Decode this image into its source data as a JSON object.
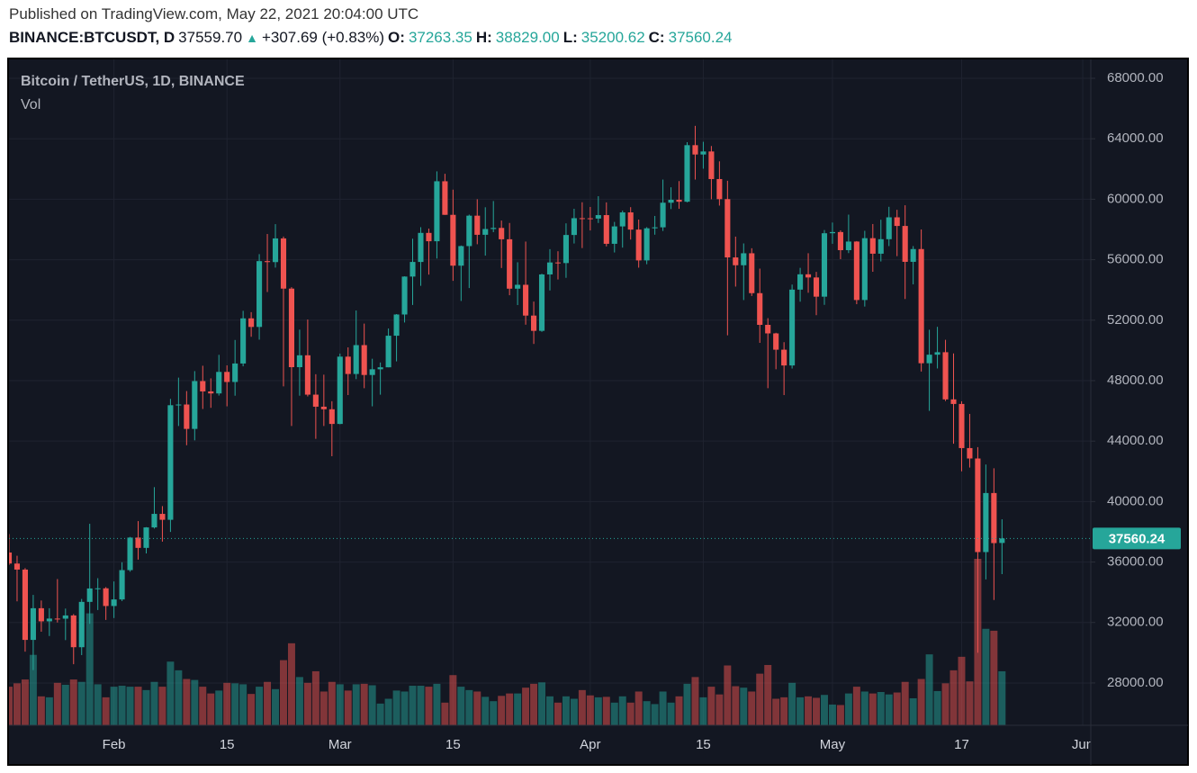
{
  "header": {
    "published": "Published on TradingView.com, May 22, 2021 20:04:00 UTC",
    "symbol": "BINANCE:BTCUSDT, D",
    "last": "37559.70",
    "change": "+307.69 (+0.83%)",
    "o_label": "O:",
    "o": "37263.35",
    "h_label": "H:",
    "h": "38829.00",
    "l_label": "L:",
    "l": "35200.62",
    "c_label": "C:",
    "c": "37560.24"
  },
  "chart_data": {
    "type": "candlestick",
    "title": "Bitcoin / TetherUS, 1D, BINANCE",
    "volume_label": "Vol",
    "x": [
      "2021-01-19",
      "2021-01-20",
      "2021-01-21",
      "2021-01-22",
      "2021-01-23",
      "2021-01-24",
      "2021-01-25",
      "2021-01-26",
      "2021-01-27",
      "2021-01-28",
      "2021-01-29",
      "2021-01-30",
      "2021-01-31",
      "2021-02-01",
      "2021-02-02",
      "2021-02-03",
      "2021-02-04",
      "2021-02-05",
      "2021-02-06",
      "2021-02-07",
      "2021-02-08",
      "2021-02-09",
      "2021-02-10",
      "2021-02-11",
      "2021-02-12",
      "2021-02-13",
      "2021-02-14",
      "2021-02-15",
      "2021-02-16",
      "2021-02-17",
      "2021-02-18",
      "2021-02-19",
      "2021-02-20",
      "2021-02-21",
      "2021-02-22",
      "2021-02-23",
      "2021-02-24",
      "2021-02-25",
      "2021-02-26",
      "2021-02-27",
      "2021-02-28",
      "2021-03-01",
      "2021-03-02",
      "2021-03-03",
      "2021-03-04",
      "2021-03-05",
      "2021-03-06",
      "2021-03-07",
      "2021-03-08",
      "2021-03-09",
      "2021-03-10",
      "2021-03-11",
      "2021-03-12",
      "2021-03-13",
      "2021-03-14",
      "2021-03-15",
      "2021-03-16",
      "2021-03-17",
      "2021-03-18",
      "2021-03-19",
      "2021-03-20",
      "2021-03-21",
      "2021-03-22",
      "2021-03-23",
      "2021-03-24",
      "2021-03-25",
      "2021-03-26",
      "2021-03-27",
      "2021-03-28",
      "2021-03-29",
      "2021-03-30",
      "2021-03-31",
      "2021-04-01",
      "2021-04-02",
      "2021-04-03",
      "2021-04-04",
      "2021-04-05",
      "2021-04-06",
      "2021-04-07",
      "2021-04-08",
      "2021-04-09",
      "2021-04-10",
      "2021-04-11",
      "2021-04-12",
      "2021-04-13",
      "2021-04-14",
      "2021-04-15",
      "2021-04-16",
      "2021-04-17",
      "2021-04-18",
      "2021-04-19",
      "2021-04-20",
      "2021-04-21",
      "2021-04-22",
      "2021-04-23",
      "2021-04-24",
      "2021-04-25",
      "2021-04-26",
      "2021-04-27",
      "2021-04-28",
      "2021-04-29",
      "2021-04-30",
      "2021-05-01",
      "2021-05-02",
      "2021-05-03",
      "2021-05-04",
      "2021-05-05",
      "2021-05-06",
      "2021-05-07",
      "2021-05-08",
      "2021-05-09",
      "2021-05-10",
      "2021-05-11",
      "2021-05-12",
      "2021-05-13",
      "2021-05-14",
      "2021-05-15",
      "2021-05-16",
      "2021-05-17",
      "2021-05-18",
      "2021-05-19",
      "2021-05-20",
      "2021-05-21",
      "2021-05-22"
    ],
    "open": [
      36630,
      35900,
      35500,
      30850,
      32945,
      32078,
      32260,
      32254,
      32467,
      30366,
      33364,
      34252,
      34262,
      33092,
      33526,
      35466,
      37618,
      36936,
      38290,
      39186,
      38795,
      46374,
      46420,
      44807,
      47969,
      47287,
      47153,
      48577,
      47911,
      49133,
      52119,
      51552,
      55906,
      55841,
      57408,
      54087,
      48891,
      49676,
      47073,
      46277,
      46106,
      45135,
      49587,
      48440,
      50349,
      48374,
      48751,
      48882,
      50971,
      52375,
      54884,
      55851,
      57773,
      57221,
      61188,
      58968,
      55605,
      56900,
      58912,
      57648,
      58030,
      58102,
      57351,
      54083,
      54340,
      52303,
      51293,
      55025,
      55817,
      55777,
      57635,
      58746,
      58740,
      58720,
      58950,
      57051,
      58202,
      59129,
      57991,
      55953,
      58077,
      58142,
      59769,
      59964,
      59835,
      63576,
      62959,
      63159,
      61334,
      60006,
      56150,
      55633,
      56425,
      53787,
      51690,
      51125,
      50047,
      49004,
      54021,
      55033,
      54824,
      53555,
      57750,
      57828,
      56631,
      57200,
      53333,
      57424,
      56397,
      57356,
      58803,
      58232,
      55859,
      56704,
      49150,
      49716,
      49880,
      46760,
      46457,
      43538,
      42850,
      36660,
      40565,
      37263.35
    ],
    "high": [
      37850,
      36415,
      35600,
      33826,
      33456,
      32944,
      34875,
      32921,
      32557,
      33558,
      38531,
      34933,
      34342,
      34717,
      35984,
      37662,
      38708,
      38310,
      40955,
      39700,
      46794,
      48200,
      47310,
      48630,
      48985,
      48150,
      49707,
      49010,
      50690,
      52618,
      52530,
      56368,
      57700,
      58352,
      57533,
      54183,
      51374,
      52041,
      48424,
      48394,
      46638,
      49790,
      50200,
      52640,
      51773,
      49448,
      49200,
      51450,
      52402,
      54900,
      57387,
      58150,
      58058,
      61844,
      61683,
      60633,
      56938,
      58981,
      60000,
      59468,
      59880,
      58589,
      58430,
      55830,
      57200,
      53230,
      55073,
      56700,
      56559,
      58405,
      59368,
      59800,
      59490,
      60200,
      59791,
      58500,
      59251,
      59475,
      58655,
      58153,
      58894,
      61300,
      60790,
      61200,
      63774,
      64854,
      63800,
      63520,
      62506,
      61220,
      57526,
      57076,
      56757,
      55410,
      52130,
      51166,
      50544,
      54356,
      55460,
      56428,
      55195,
      57963,
      58458,
      57941,
      58981,
      57232,
      57911,
      58360,
      58644,
      59500,
      59300,
      59600,
      56900,
      58000,
      51367,
      51560,
      50700,
      49800,
      46635,
      45799,
      43600,
      42451,
      42200,
      38829
    ],
    "low": [
      35800,
      33400,
      30071,
      28850,
      31390,
      31106,
      32000,
      30837,
      29241,
      29842,
      31915,
      32825,
      32171,
      32296,
      33418,
      35362,
      36161,
      36570,
      38215,
      37351,
      37988,
      45000,
      43727,
      44050,
      46125,
      46202,
      47014,
      46300,
      47003,
      48947,
      50901,
      50710,
      53863,
      55477,
      47622,
      45000,
      47003,
      46955,
      44150,
      45000,
      43000,
      45115,
      47047,
      48100,
      47500,
      46300,
      47070,
      48882,
      49274,
      51845,
      53005,
      54272,
      55013,
      56078,
      58963,
      54600,
      53271,
      54123,
      57023,
      56270,
      57820,
      55450,
      53650,
      53000,
      51700,
      50427,
      51226,
      53966,
      54691,
      54800,
      57071,
      56769,
      57935,
      58428,
      56880,
      56478,
      56800,
      57333,
      55473,
      55700,
      57654,
      57900,
      59350,
      59366,
      59793,
      61301,
      62020,
      60000,
      59580,
      51000,
      54221,
      53329,
      53600,
      50500,
      47500,
      48753,
      47044,
      48800,
      53222,
      53813,
      52330,
      53013,
      57052,
      56035,
      56437,
      53057,
      52900,
      55200,
      55883,
      56900,
      56235,
      53400,
      54370,
      48600,
      46000,
      48805,
      46650,
      43825,
      42001,
      42250,
      30000,
      34850,
      33488,
      35200.62
    ],
    "close": [
      35900,
      35500,
      30850,
      32945,
      32078,
      32260,
      32254,
      32467,
      30366,
      33364,
      34252,
      34262,
      33092,
      33526,
      35466,
      37618,
      36936,
      38290,
      39186,
      38795,
      46374,
      46420,
      44807,
      47969,
      47287,
      47153,
      48577,
      47911,
      49133,
      52119,
      51552,
      55906,
      55841,
      57408,
      54087,
      48891,
      49676,
      47073,
      46277,
      46106,
      45135,
      49587,
      48440,
      50349,
      48374,
      48751,
      48882,
      50971,
      52375,
      54884,
      55851,
      57773,
      57221,
      61188,
      58968,
      55605,
      56900,
      58912,
      57648,
      58030,
      58102,
      57351,
      54083,
      54340,
      52303,
      51293,
      55025,
      55817,
      55777,
      57635,
      58746,
      58740,
      58720,
      58950,
      57051,
      58202,
      59129,
      57991,
      55953,
      58077,
      58142,
      59769,
      59964,
      59835,
      63576,
      62959,
      63159,
      61334,
      60006,
      56150,
      55633,
      56425,
      53787,
      51690,
      51125,
      50047,
      49004,
      54021,
      55033,
      54824,
      53555,
      57750,
      57828,
      56631,
      57200,
      53333,
      57424,
      56397,
      57356,
      58803,
      58232,
      55859,
      56704,
      49150,
      49716,
      49880,
      46760,
      46457,
      43538,
      42850,
      36660,
      40565,
      37253,
      37560.24
    ],
    "volume": [
      80000,
      87000,
      95000,
      146000,
      60000,
      58000,
      88000,
      84000,
      95000,
      90000,
      232000,
      85000,
      58000,
      80000,
      82000,
      80000,
      80000,
      73000,
      90000,
      80000,
      132000,
      114000,
      96000,
      94000,
      80000,
      66000,
      72000,
      88000,
      87000,
      85000,
      65000,
      80000,
      90000,
      75000,
      135000,
      170000,
      100000,
      88000,
      112000,
      70000,
      90000,
      85000,
      72000,
      85000,
      86000,
      83000,
      45000,
      55000,
      72000,
      70000,
      82000,
      82000,
      80000,
      86000,
      47000,
      104000,
      80000,
      73000,
      70000,
      59000,
      50000,
      61000,
      66000,
      66000,
      78000,
      86000,
      89000,
      60000,
      47000,
      60000,
      55000,
      73000,
      62000,
      58000,
      59000,
      47000,
      60000,
      47000,
      70000,
      50000,
      44000,
      70000,
      47000,
      60000,
      86000,
      100000,
      58000,
      80000,
      64000,
      124000,
      81000,
      78000,
      70000,
      107000,
      125000,
      55000,
      58000,
      88000,
      58000,
      60000,
      57000,
      63000,
      43000,
      42000,
      66000,
      80000,
      70000,
      66000,
      69000,
      64000,
      68000,
      90000,
      56000,
      96000,
      147000,
      71000,
      87000,
      114000,
      142000,
      91000,
      345000,
      200000,
      196000,
      112000
    ],
    "up_color": "#26a69a",
    "down_color": "#ef5350",
    "ylim": [
      25200,
      69250
    ],
    "yticks": [
      {
        "value": 28000,
        "label": "28000.00"
      },
      {
        "value": 32000,
        "label": "32000.00"
      },
      {
        "value": 36000,
        "label": "36000.00"
      },
      {
        "value": 40000,
        "label": "40000.00"
      },
      {
        "value": 44000,
        "label": "44000.00"
      },
      {
        "value": 48000,
        "label": "48000.00"
      },
      {
        "value": 52000,
        "label": "52000.00"
      },
      {
        "value": 56000,
        "label": "56000.00"
      },
      {
        "value": 60000,
        "label": "60000.00"
      },
      {
        "value": 64000,
        "label": "64000.00"
      },
      {
        "value": 68000,
        "label": "68000.00"
      }
    ],
    "xlim": [
      "2021-01-19",
      "2021-06-02"
    ],
    "xticks": [
      {
        "value": "2021-02-01",
        "label": "Feb"
      },
      {
        "value": "2021-02-15",
        "label": "15"
      },
      {
        "value": "2021-03-01",
        "label": "Mar"
      },
      {
        "value": "2021-03-15",
        "label": "15"
      },
      {
        "value": "2021-04-01",
        "label": "Apr"
      },
      {
        "value": "2021-04-15",
        "label": "15"
      },
      {
        "value": "2021-05-01",
        "label": "May"
      },
      {
        "value": "2021-05-17",
        "label": "17"
      },
      {
        "value": "2021-06-01",
        "label": "Jun"
      }
    ],
    "grid": true
  }
}
